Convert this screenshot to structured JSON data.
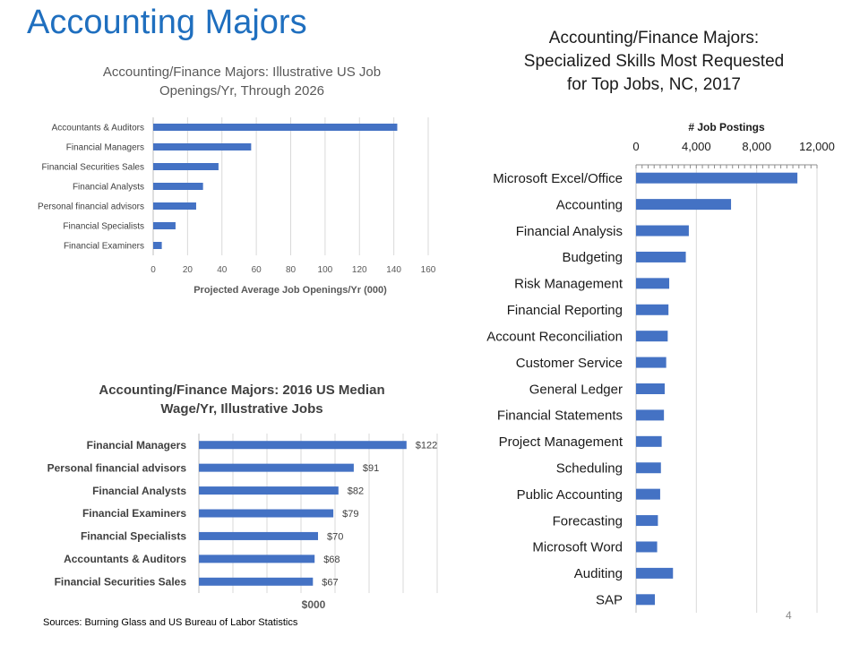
{
  "slide": {
    "title": "Accounting Majors",
    "source": "Sources: Burning Glass and US Bureau of Labor Statistics",
    "page_number": "4",
    "bar_color": "#4472c4"
  },
  "chart_data": [
    {
      "type": "bar",
      "orientation": "horizontal",
      "title_lines": [
        "Accounting/Finance Majors: Illustrative US Job",
        "Openings/Yr, Through 2026"
      ],
      "categories": [
        "Accountants & Auditors",
        "Financial Managers",
        "Financial Securities Sales",
        "Financial Analysts",
        "Personal financial advisors",
        "Financial Specialists",
        "Financial Examiners"
      ],
      "values": [
        142,
        57,
        38,
        29,
        25,
        13,
        5
      ],
      "xlabel": "Projected Average Job Openings/Yr (000)",
      "xlim": [
        0,
        160
      ],
      "xticks": [
        "0",
        "20",
        "40",
        "60",
        "80",
        "100",
        "120",
        "140",
        "160"
      ],
      "grid": true
    },
    {
      "type": "bar",
      "orientation": "horizontal",
      "title_lines": [
        "Accounting/Finance Majors: 2016 US Median",
        "Wage/Yr, Illustrative Jobs"
      ],
      "categories": [
        "Financial Managers",
        "Personal financial advisors",
        "Financial Analysts",
        "Financial Examiners",
        "Financial Specialists",
        "Accountants & Auditors",
        "Financial Securities Sales"
      ],
      "values": [
        122,
        91,
        82,
        79,
        70,
        68,
        67
      ],
      "data_labels": [
        "$122",
        "$91",
        "$82",
        "$79",
        "$70",
        "$68",
        "$67"
      ],
      "xlabel": "$000",
      "xlim": [
        0,
        140
      ],
      "grid": true
    },
    {
      "type": "bar",
      "orientation": "horizontal",
      "title_lines": [
        "Accounting/Finance Majors:",
        "Specialized Skills Most Requested",
        "for Top Jobs, NC, 2017"
      ],
      "categories": [
        "Microsoft Excel/Office",
        "Accounting",
        "Financial Analysis",
        "Budgeting",
        "Risk Management",
        "Financial Reporting",
        "Account Reconciliation",
        "Customer Service",
        "General Ledger",
        "Financial Statements",
        "Project Management",
        "Scheduling",
        "Public Accounting",
        "Forecasting",
        "Microsoft Word",
        "Auditing",
        "SAP"
      ],
      "values": [
        10700,
        6300,
        3500,
        3300,
        2200,
        2150,
        2100,
        2000,
        1900,
        1850,
        1700,
        1650,
        1600,
        1450,
        1400,
        2450,
        1250
      ],
      "xlabel": "# Job Postings",
      "xlim": [
        0,
        12000
      ],
      "xticks": [
        "0",
        "4,000",
        "8,000",
        "12,000"
      ],
      "axis_position": "top",
      "grid": true
    }
  ]
}
